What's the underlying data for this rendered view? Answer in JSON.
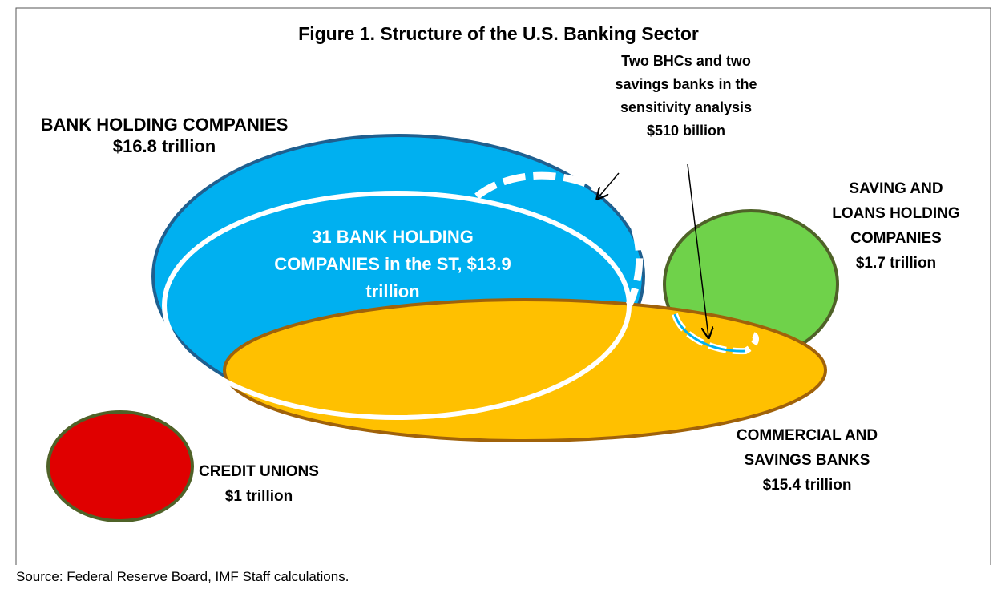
{
  "title": "Figure 1. Structure of the U.S. Banking Sector",
  "source": "Source: Federal Reserve Board, IMF Staff calculations.",
  "nodes": [
    {
      "label": [
        "BANK HOLDING COMPANIES",
        "$16.8 trillion"
      ]
    },
    {
      "label": [
        "31 BANK HOLDING",
        "COMPANIES in the ST, $13.9",
        "trillion"
      ]
    },
    {
      "label": [
        "Two BHCs and two",
        "savings banks in the",
        "sensitivity analysis",
        "$510 billion"
      ]
    },
    {
      "label": [
        "SAVING AND",
        "LOANS HOLDING",
        "COMPANIES",
        "$1.7 trillion"
      ]
    },
    {
      "label": [
        "COMMERCIAL AND",
        "SAVINGS BANKS",
        "$15.4 trillion"
      ]
    },
    {
      "label": [
        "CREDIT UNIONS",
        "$1 trillion"
      ]
    }
  ]
}
